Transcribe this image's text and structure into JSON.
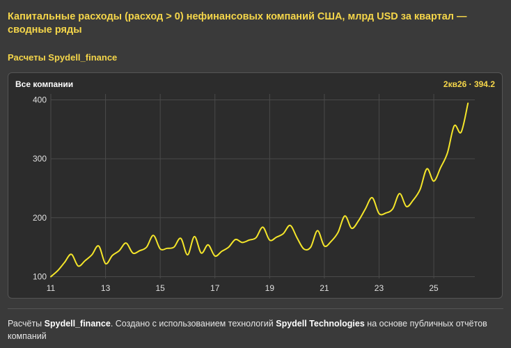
{
  "header": {
    "title": "Капитальные расходы (расход > 0) нефинансовых компаний США, млрд USD за квартал — сводные ряды",
    "subtitle": "Расчеты Spydell_finance"
  },
  "panel": {
    "title": "Все компании",
    "last_value": "2кв26 · 394.2"
  },
  "footer": {
    "prefix": "Расчёты ",
    "author": "Spydell_finance",
    "middle": ". Создано с использованием технологий ",
    "tech": "Spydell Technologies",
    "suffix": " на основе публичных отчётов компаний"
  },
  "colors": {
    "line": "#f5e62a",
    "accent": "#f5d64a",
    "grid": "#4a4a4a"
  },
  "chart_data": {
    "type": "line",
    "title": "Все компании",
    "xlabel": "",
    "ylabel": "",
    "xlim": [
      11,
      26.5
    ],
    "ylim": [
      97,
      410
    ],
    "x_ticks": [
      11,
      13,
      15,
      17,
      19,
      21,
      23,
      25
    ],
    "y_ticks": [
      100,
      200,
      300,
      400
    ],
    "grid": true,
    "series": [
      {
        "x": [
          11.0,
          11.25,
          11.5,
          11.75,
          12.0,
          12.25,
          12.5,
          12.75,
          13.0,
          13.25,
          13.5,
          13.75,
          14.0,
          14.25,
          14.5,
          14.75,
          15.0,
          15.25,
          15.5,
          15.75,
          16.0,
          16.25,
          16.5,
          16.75,
          17.0,
          17.25,
          17.5,
          17.75,
          18.0,
          18.25,
          18.5,
          18.75,
          19.0,
          19.25,
          19.5,
          19.75,
          20.0,
          20.25,
          20.5,
          20.75,
          21.0,
          21.25,
          21.5,
          21.75,
          22.0,
          22.25,
          22.5,
          22.75,
          23.0,
          23.25,
          23.5,
          23.75,
          24.0,
          24.25,
          24.5,
          24.75,
          25.0,
          25.25,
          25.5,
          25.75,
          26.0,
          26.25
        ],
        "y": [
          100,
          110,
          124,
          138,
          118,
          127,
          137,
          152,
          122,
          136,
          144,
          157,
          140,
          144,
          150,
          170,
          147,
          148,
          150,
          165,
          137,
          168,
          140,
          154,
          135,
          143,
          150,
          163,
          158,
          162,
          166,
          184,
          162,
          167,
          173,
          187,
          166,
          147,
          150,
          178,
          152,
          160,
          175,
          203,
          182,
          195,
          215,
          234,
          207,
          208,
          215,
          241,
          219,
          230,
          248,
          283,
          262,
          285,
          310,
          356,
          345,
          394.2
        ]
      }
    ]
  }
}
